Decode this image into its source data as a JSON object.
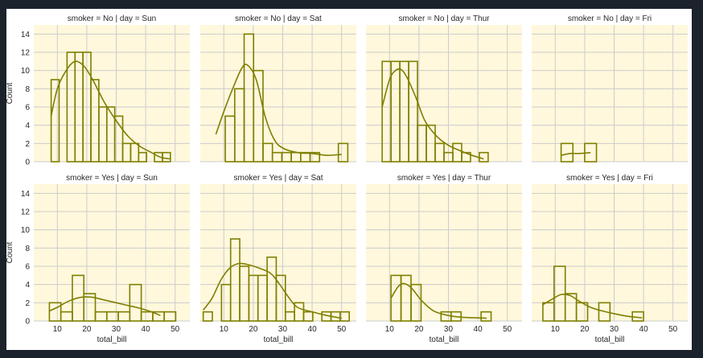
{
  "chart_data": {
    "type": "facet-histogram-kde",
    "color": "#7f7f00",
    "facet_background": "#fff8dc",
    "grid_color": "#cccccc",
    "xlabel": "total_bill",
    "ylabel": "Count",
    "xlim": [
      2,
      55
    ],
    "ylim": [
      0,
      15
    ],
    "xticks": [
      10,
      20,
      30,
      40,
      50
    ],
    "yticks": [
      0,
      2,
      4,
      6,
      8,
      10,
      12,
      14
    ],
    "grid": true,
    "panels": [
      {
        "title": "smoker = No | day = Sun",
        "bins": [
          [
            7.9,
            10.6,
            9
          ],
          [
            10.6,
            13.3,
            0
          ],
          [
            13.3,
            16.0,
            12
          ],
          [
            16.0,
            18.7,
            12
          ],
          [
            18.7,
            21.4,
            12
          ],
          [
            21.4,
            24.1,
            9
          ],
          [
            24.1,
            26.8,
            6
          ],
          [
            26.8,
            29.5,
            6
          ],
          [
            29.5,
            32.2,
            5
          ],
          [
            32.2,
            34.9,
            2
          ],
          [
            34.9,
            37.6,
            2
          ],
          [
            37.6,
            40.3,
            1
          ],
          [
            40.3,
            43.0,
            0
          ],
          [
            43.0,
            45.7,
            1
          ],
          [
            45.7,
            48.4,
            1
          ]
        ],
        "kde": [
          [
            7.9,
            5
          ],
          [
            10,
            8
          ],
          [
            13,
            10
          ],
          [
            16,
            11
          ],
          [
            19,
            10.5
          ],
          [
            22,
            9
          ],
          [
            26,
            6.5
          ],
          [
            30,
            4.5
          ],
          [
            34,
            2.8
          ],
          [
            38,
            1.7
          ],
          [
            42,
            1.0
          ],
          [
            45,
            0.5
          ],
          [
            48.4,
            0.3
          ]
        ]
      },
      {
        "title": "smoker = No | day = Sat",
        "bins": [
          [
            7.3,
            10.5,
            0
          ],
          [
            10.5,
            13.7,
            5
          ],
          [
            13.7,
            16.9,
            8
          ],
          [
            16.9,
            20.1,
            14
          ],
          [
            20.1,
            23.3,
            10
          ],
          [
            23.3,
            26.5,
            2
          ],
          [
            26.5,
            29.7,
            1
          ],
          [
            29.7,
            32.9,
            1
          ],
          [
            32.9,
            36.1,
            1
          ],
          [
            36.1,
            39.3,
            1
          ],
          [
            39.3,
            42.5,
            1
          ],
          [
            42.5,
            45.7,
            0
          ],
          [
            45.7,
            48.9,
            0
          ],
          [
            48.9,
            52.1,
            2
          ]
        ],
        "kde": [
          [
            7.3,
            3
          ],
          [
            10,
            5.5
          ],
          [
            13,
            8
          ],
          [
            16,
            10.2
          ],
          [
            18,
            10.6
          ],
          [
            21,
            9
          ],
          [
            24,
            5
          ],
          [
            27,
            2.5
          ],
          [
            30,
            1.5
          ],
          [
            35,
            1.0
          ],
          [
            40,
            0.9
          ],
          [
            45,
            0.7
          ],
          [
            50,
            0.8
          ]
        ]
      },
      {
        "title": "smoker = No | day = Thur",
        "bins": [
          [
            7.5,
            10.5,
            11
          ],
          [
            10.5,
            13.5,
            11
          ],
          [
            13.5,
            16.5,
            11
          ],
          [
            16.5,
            19.5,
            11
          ],
          [
            19.5,
            22.5,
            4
          ],
          [
            22.5,
            25.5,
            4
          ],
          [
            25.5,
            28.5,
            2
          ],
          [
            28.5,
            31.5,
            1
          ],
          [
            31.5,
            34.5,
            2
          ],
          [
            34.5,
            37.5,
            1
          ],
          [
            37.5,
            40.5,
            0
          ],
          [
            40.5,
            43.5,
            1
          ]
        ],
        "kde": [
          [
            7.5,
            6
          ],
          [
            10,
            9
          ],
          [
            12,
            10
          ],
          [
            14,
            10.1
          ],
          [
            16,
            9.2
          ],
          [
            19,
            7
          ],
          [
            22,
            4.5
          ],
          [
            26,
            2.8
          ],
          [
            30,
            1.8
          ],
          [
            34,
            1.2
          ],
          [
            38,
            0.7
          ],
          [
            42,
            0.3
          ]
        ]
      },
      {
        "title": "smoker = No | day = Fri",
        "bins": [
          [
            12.0,
            16.0,
            2
          ],
          [
            16.0,
            20.0,
            0
          ],
          [
            20.0,
            24.0,
            2
          ]
        ],
        "kde": [
          [
            12,
            0.7
          ],
          [
            15,
            0.9
          ],
          [
            18,
            0.9
          ],
          [
            22,
            1.0
          ]
        ]
      },
      {
        "title": "smoker = Yes | day = Sun",
        "bins": [
          [
            7.3,
            11.2,
            2
          ],
          [
            11.2,
            15.1,
            1
          ],
          [
            15.1,
            19.0,
            5
          ],
          [
            19.0,
            22.9,
            3
          ],
          [
            22.9,
            26.8,
            1
          ],
          [
            26.8,
            30.7,
            1
          ],
          [
            30.7,
            34.6,
            1
          ],
          [
            34.6,
            38.5,
            4
          ],
          [
            38.5,
            42.4,
            1
          ],
          [
            42.4,
            46.3,
            1
          ],
          [
            46.3,
            50.2,
            1
          ]
        ],
        "kde": [
          [
            7.3,
            1.1
          ],
          [
            10,
            1.5
          ],
          [
            14,
            2.2
          ],
          [
            18,
            2.6
          ],
          [
            22,
            2.6
          ],
          [
            26,
            2.3
          ],
          [
            30,
            2.0
          ],
          [
            34,
            1.7
          ],
          [
            38,
            1.4
          ],
          [
            42,
            1.0
          ],
          [
            45,
            0.6
          ]
        ]
      },
      {
        "title": "smoker = Yes | day = Sat",
        "bins": [
          [
            3.0,
            6.1,
            1
          ],
          [
            6.1,
            9.2,
            0
          ],
          [
            9.2,
            12.3,
            4
          ],
          [
            12.3,
            15.4,
            9
          ],
          [
            15.4,
            18.5,
            6
          ],
          [
            18.5,
            21.6,
            5
          ],
          [
            21.6,
            24.7,
            5
          ],
          [
            24.7,
            27.8,
            7
          ],
          [
            27.8,
            30.9,
            5
          ],
          [
            30.9,
            34.0,
            1
          ],
          [
            34.0,
            37.1,
            2
          ],
          [
            37.1,
            40.2,
            1
          ],
          [
            40.2,
            43.3,
            0
          ],
          [
            43.3,
            46.4,
            1
          ],
          [
            46.4,
            49.5,
            1
          ],
          [
            49.5,
            52.6,
            1
          ]
        ],
        "kde": [
          [
            3,
            1.2
          ],
          [
            6,
            2.5
          ],
          [
            9,
            4.5
          ],
          [
            12,
            5.8
          ],
          [
            15,
            6.3
          ],
          [
            18,
            6.2
          ],
          [
            22,
            5.8
          ],
          [
            26,
            5.2
          ],
          [
            29,
            4
          ],
          [
            32,
            2.6
          ],
          [
            35,
            1.5
          ],
          [
            40,
            1.0
          ],
          [
            45,
            0.6
          ],
          [
            50,
            0.3
          ]
        ]
      },
      {
        "title": "smoker = Yes | day = Thur",
        "bins": [
          [
            10.5,
            13.9,
            5
          ],
          [
            13.9,
            17.3,
            5
          ],
          [
            17.3,
            20.7,
            4
          ],
          [
            20.7,
            24.1,
            0
          ],
          [
            24.1,
            27.5,
            0
          ],
          [
            27.5,
            30.9,
            1
          ],
          [
            30.9,
            34.3,
            1
          ],
          [
            34.3,
            37.7,
            0
          ],
          [
            37.7,
            41.1,
            0
          ],
          [
            41.1,
            44.5,
            1
          ]
        ],
        "kde": [
          [
            10.5,
            2.5
          ],
          [
            13,
            3.8
          ],
          [
            15,
            4.1
          ],
          [
            17.5,
            3.6
          ],
          [
            21,
            2.2
          ],
          [
            25,
            1.1
          ],
          [
            30,
            0.6
          ],
          [
            35,
            0.4
          ],
          [
            40,
            0.35
          ],
          [
            43,
            0.3
          ]
        ]
      },
      {
        "title": "smoker = Yes | day = Fri",
        "bins": [
          [
            5.8,
            9.6,
            2
          ],
          [
            9.6,
            13.4,
            6
          ],
          [
            13.4,
            17.2,
            3
          ],
          [
            17.2,
            21.0,
            2
          ],
          [
            21.0,
            24.8,
            0
          ],
          [
            24.8,
            28.6,
            2
          ],
          [
            28.6,
            32.4,
            0
          ],
          [
            32.4,
            36.2,
            0
          ],
          [
            36.2,
            40.0,
            1
          ]
        ],
        "kde": [
          [
            5.8,
            1.8
          ],
          [
            9,
            2.4
          ],
          [
            12,
            2.9
          ],
          [
            15,
            2.8
          ],
          [
            18,
            2.2
          ],
          [
            22,
            1.5
          ],
          [
            26,
            1.1
          ],
          [
            30,
            0.8
          ],
          [
            35,
            0.5
          ],
          [
            39.5,
            0.35
          ]
        ]
      }
    ]
  }
}
